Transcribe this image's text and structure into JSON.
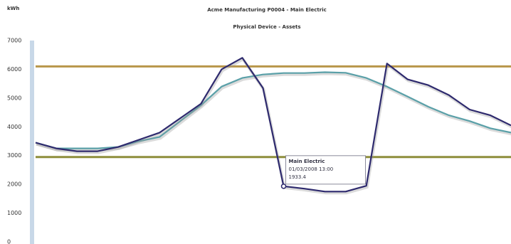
{
  "chart_data": {
    "type": "line",
    "title": "Acme Manufacturing P0004 - Main Electric",
    "subtitle": "Physical Device - Assets",
    "y_label": "kWh",
    "categories": [
      null,
      null,
      null,
      null,
      null,
      null,
      null,
      null,
      null,
      null,
      null,
      null,
      "01/03/2008 13:00",
      null,
      null,
      null,
      null,
      null,
      null,
      null,
      null,
      null,
      null,
      null
    ],
    "series": [
      {
        "name": "Main Electric",
        "color": "#2e2a6e",
        "values": [
          3450,
          3250,
          3150,
          3150,
          3300,
          3550,
          3800,
          4300,
          4800,
          6000,
          6400,
          5350,
          1933.4,
          1850,
          1750,
          1750,
          1950,
          6200,
          5650,
          5450,
          5100,
          4600,
          4400,
          4050
        ]
      },
      {
        "color": "#5aa0a8",
        "values": [
          3450,
          3250,
          3250,
          3250,
          3300,
          3500,
          3650,
          4200,
          4750,
          5400,
          5700,
          5820,
          5870,
          5870,
          5900,
          5880,
          5700,
          5400,
          5050,
          4700,
          4400,
          4200,
          3950,
          3800
        ]
      }
    ],
    "reference_lines": [
      {
        "value": 6100,
        "color": "#b8964a"
      },
      {
        "value": 2950,
        "color": "#8e8e3c"
      }
    ],
    "ylim": [
      0,
      7000
    ],
    "yticks": [
      0,
      1000,
      2000,
      3000,
      4000,
      5000,
      6000,
      7000
    ],
    "grid": false,
    "tooltip_index": 12
  }
}
